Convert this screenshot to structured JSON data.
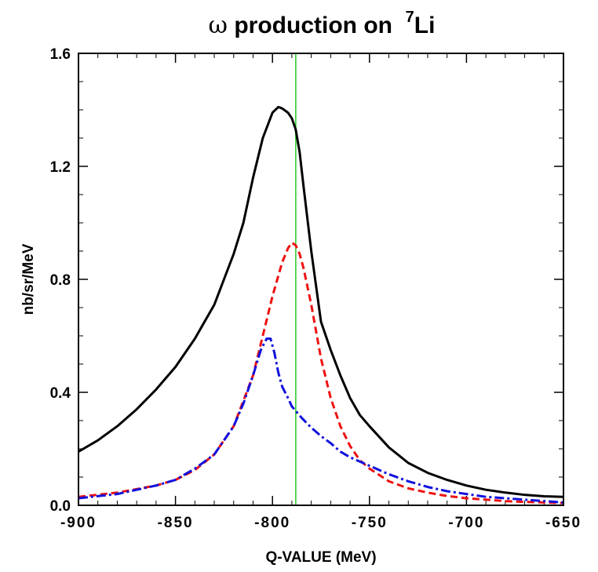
{
  "chart_data": {
    "type": "line",
    "title": {
      "symbol": "ω",
      "main": " production on  ",
      "superscript": "7",
      "element": "Li"
    },
    "xlabel": "Q-VALUE (MeV)",
    "ylabel": "nb/sr/MeV",
    "xlim": [
      -900,
      -650
    ],
    "ylim": [
      0.0,
      1.6
    ],
    "x_ticks": [
      -900,
      -850,
      -800,
      -750,
      -700,
      -650
    ],
    "x_tick_labels": [
      "-900",
      "-850",
      "-800",
      "-750",
      "-700",
      "-650"
    ],
    "y_ticks": [
      0.0,
      0.4,
      0.8,
      1.2,
      1.6
    ],
    "y_tick_labels": [
      "0.0",
      "0.4",
      "0.8",
      "1.2",
      "1.6"
    ],
    "grid": false,
    "vertical_line": {
      "x": -788,
      "color": "#22cc22"
    },
    "series": [
      {
        "color": "#000000",
        "style": "solid",
        "x": [
          -900,
          -890,
          -880,
          -870,
          -860,
          -850,
          -840,
          -830,
          -820,
          -815,
          -810,
          -805,
          -800,
          -797,
          -795,
          -792,
          -790,
          -788,
          -786,
          -784,
          -780,
          -775,
          -770,
          -765,
          -760,
          -755,
          -750,
          -740,
          -730,
          -720,
          -710,
          -700,
          -690,
          -680,
          -670,
          -660,
          -650
        ],
        "y": [
          0.19,
          0.23,
          0.28,
          0.34,
          0.41,
          0.49,
          0.59,
          0.71,
          0.89,
          1.0,
          1.16,
          1.3,
          1.39,
          1.41,
          1.405,
          1.39,
          1.37,
          1.33,
          1.25,
          1.13,
          0.9,
          0.65,
          0.55,
          0.46,
          0.38,
          0.32,
          0.28,
          0.205,
          0.15,
          0.115,
          0.09,
          0.07,
          0.055,
          0.045,
          0.037,
          0.032,
          0.03
        ]
      },
      {
        "color": "#ee1111",
        "style": "dashed",
        "x": [
          -900,
          -880,
          -860,
          -850,
          -840,
          -830,
          -820,
          -810,
          -805,
          -800,
          -795,
          -792,
          -790,
          -788,
          -786,
          -784,
          -780,
          -775,
          -770,
          -765,
          -760,
          -755,
          -750,
          -740,
          -730,
          -720,
          -710,
          -700,
          -690,
          -680,
          -670,
          -660,
          -650
        ],
        "y": [
          0.03,
          0.045,
          0.07,
          0.09,
          0.125,
          0.18,
          0.28,
          0.46,
          0.6,
          0.74,
          0.86,
          0.91,
          0.93,
          0.92,
          0.89,
          0.84,
          0.71,
          0.52,
          0.38,
          0.28,
          0.21,
          0.16,
          0.13,
          0.085,
          0.06,
          0.045,
          0.033,
          0.025,
          0.02,
          0.015,
          0.012,
          0.01,
          0.008
        ]
      },
      {
        "color": "#1111dd",
        "style": "dash-dot",
        "x": [
          -900,
          -880,
          -860,
          -850,
          -840,
          -830,
          -820,
          -815,
          -810,
          -806,
          -803,
          -801,
          -799,
          -797,
          -795,
          -792,
          -790,
          -785,
          -780,
          -775,
          -770,
          -765,
          -760,
          -750,
          -740,
          -730,
          -720,
          -710,
          -700,
          -690,
          -680,
          -670,
          -660,
          -650
        ],
        "y": [
          0.025,
          0.04,
          0.07,
          0.09,
          0.13,
          0.18,
          0.28,
          0.36,
          0.46,
          0.55,
          0.59,
          0.59,
          0.54,
          0.47,
          0.42,
          0.38,
          0.35,
          0.31,
          0.275,
          0.245,
          0.22,
          0.19,
          0.17,
          0.14,
          0.11,
          0.085,
          0.065,
          0.05,
          0.04,
          0.03,
          0.025,
          0.02,
          0.015,
          0.01
        ]
      }
    ]
  }
}
